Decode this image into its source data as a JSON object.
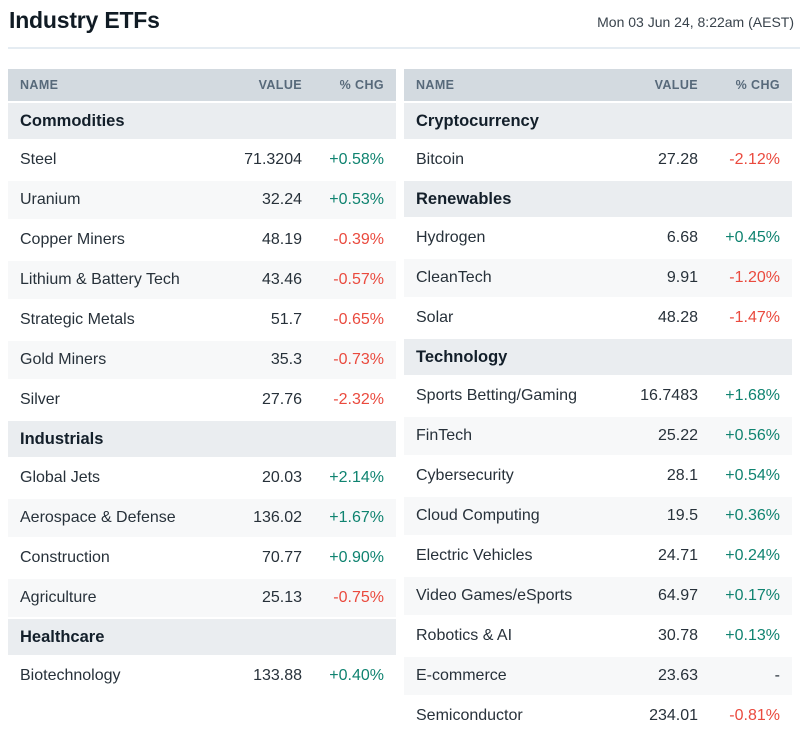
{
  "page": {
    "title": "Industry ETFs",
    "timestamp": "Mon 03 Jun 24, 8:22am (AEST)"
  },
  "table_columns": {
    "name": "NAME",
    "value": "VALUE",
    "chg": "% CHG"
  },
  "colors": {
    "positive": "#0f8370",
    "negative": "#ea4a3e",
    "neutral": "#27313a"
  },
  "tables": [
    {
      "id": "left",
      "sections": [
        {
          "label": "Commodities",
          "rows": [
            {
              "name": "Steel",
              "value": "71.3204",
              "chg": "+0.58%",
              "dir": "up"
            },
            {
              "name": "Uranium",
              "value": "32.24",
              "chg": "+0.53%",
              "dir": "up"
            },
            {
              "name": "Copper Miners",
              "value": "48.19",
              "chg": "-0.39%",
              "dir": "down"
            },
            {
              "name": "Lithium & Battery Tech",
              "value": "43.46",
              "chg": "-0.57%",
              "dir": "down"
            },
            {
              "name": "Strategic Metals",
              "value": "51.7",
              "chg": "-0.65%",
              "dir": "down"
            },
            {
              "name": "Gold Miners",
              "value": "35.3",
              "chg": "-0.73%",
              "dir": "down"
            },
            {
              "name": "Silver",
              "value": "27.76",
              "chg": "-2.32%",
              "dir": "down"
            }
          ]
        },
        {
          "label": "Industrials",
          "rows": [
            {
              "name": "Global Jets",
              "value": "20.03",
              "chg": "+2.14%",
              "dir": "up"
            },
            {
              "name": "Aerospace & Defense",
              "value": "136.02",
              "chg": "+1.67%",
              "dir": "up"
            },
            {
              "name": "Construction",
              "value": "70.77",
              "chg": "+0.90%",
              "dir": "up"
            },
            {
              "name": "Agriculture",
              "value": "25.13",
              "chg": "-0.75%",
              "dir": "down"
            }
          ]
        },
        {
          "label": "Healthcare",
          "rows": [
            {
              "name": "Biotechnology",
              "value": "133.88",
              "chg": "+0.40%",
              "dir": "up"
            }
          ]
        }
      ]
    },
    {
      "id": "right",
      "sections": [
        {
          "label": "Cryptocurrency",
          "rows": [
            {
              "name": "Bitcoin",
              "value": "27.28",
              "chg": "-2.12%",
              "dir": "down"
            }
          ]
        },
        {
          "label": "Renewables",
          "rows": [
            {
              "name": "Hydrogen",
              "value": "6.68",
              "chg": "+0.45%",
              "dir": "up"
            },
            {
              "name": "CleanTech",
              "value": "9.91",
              "chg": "-1.20%",
              "dir": "down"
            },
            {
              "name": "Solar",
              "value": "48.28",
              "chg": "-1.47%",
              "dir": "down"
            }
          ]
        },
        {
          "label": "Technology",
          "rows": [
            {
              "name": "Sports Betting/Gaming",
              "value": "16.7483",
              "chg": "+1.68%",
              "dir": "up"
            },
            {
              "name": "FinTech",
              "value": "25.22",
              "chg": "+0.56%",
              "dir": "up"
            },
            {
              "name": "Cybersecurity",
              "value": "28.1",
              "chg": "+0.54%",
              "dir": "up"
            },
            {
              "name": "Cloud Computing",
              "value": "19.5",
              "chg": "+0.36%",
              "dir": "up"
            },
            {
              "name": "Electric Vehicles",
              "value": "24.71",
              "chg": "+0.24%",
              "dir": "up"
            },
            {
              "name": "Video Games/eSports",
              "value": "64.97",
              "chg": "+0.17%",
              "dir": "up"
            },
            {
              "name": "Robotics & AI",
              "value": "30.78",
              "chg": "+0.13%",
              "dir": "up"
            },
            {
              "name": "E-commerce",
              "value": "23.63",
              "chg": "-",
              "dir": "flat"
            },
            {
              "name": "Semiconductor",
              "value": "234.01",
              "chg": "-0.81%",
              "dir": "down"
            }
          ]
        }
      ]
    }
  ]
}
